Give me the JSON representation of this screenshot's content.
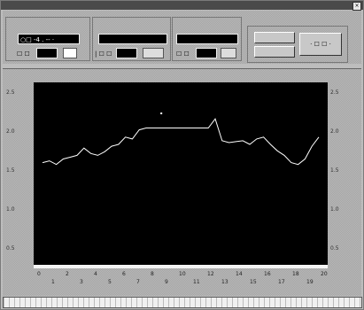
{
  "window": {
    "title": "",
    "close_glyph": "×"
  },
  "controls": {
    "field1_value": "○□ -4 . -- ·",
    "field2_value": "",
    "field3_value": "",
    "sub1_label": "☐ ☐",
    "sub2_label": "| ☐ ☐",
    "sub3_label": "☐ ☐",
    "button_top": "",
    "button_bottom": "",
    "big_button": "·  ☐  ☐  ·"
  },
  "axis": {
    "left_ticks": [
      "2.5",
      "2.0",
      "1.5",
      "1.0",
      "0.5"
    ],
    "right_ticks": [
      "2.5",
      "2.0",
      "1.5",
      "1.0",
      "0.5"
    ],
    "x_unit": "",
    "x_ticks": [
      "0",
      "1",
      "2",
      "3",
      "4",
      "5",
      "6",
      "7",
      "8",
      "9",
      "10",
      "11",
      "12",
      "13",
      "14",
      "15",
      "16",
      "17",
      "18",
      "19",
      "20"
    ]
  },
  "chart_data": {
    "type": "line",
    "title": "",
    "xlabel": "",
    "ylabel": "",
    "grid": false,
    "ylim": [
      0.5,
      2.5
    ],
    "xlim": [
      0,
      20
    ],
    "series": [
      {
        "color": "#ffffff",
        "x": [
          0,
          0.5,
          1,
          1.5,
          2,
          2.5,
          3,
          3.5,
          4,
          4.5,
          5,
          5.5,
          6,
          6.5,
          7,
          7.5,
          8,
          8.5,
          9,
          9.5,
          10,
          10.5,
          11,
          11.5,
          12,
          12.5,
          13,
          13.5,
          14,
          14.5,
          15,
          15.5,
          16,
          16.5,
          17,
          17.5,
          18,
          18.5,
          19,
          19.5,
          20
        ],
        "y": [
          1.62,
          1.64,
          1.6,
          1.66,
          1.68,
          1.7,
          1.78,
          1.72,
          1.7,
          1.74,
          1.8,
          1.82,
          1.9,
          1.88,
          1.98,
          2.0,
          2.0,
          2.0,
          2.0,
          2.0,
          2.0,
          2.0,
          2.0,
          2.0,
          2.0,
          2.1,
          1.86,
          1.84,
          1.85,
          1.86,
          1.82,
          1.88,
          1.9,
          1.82,
          1.75,
          1.7,
          1.62,
          1.6,
          1.66,
          1.8,
          1.9
        ]
      }
    ],
    "marker_points": [
      {
        "x": 8.6,
        "y": 2.16
      }
    ]
  }
}
